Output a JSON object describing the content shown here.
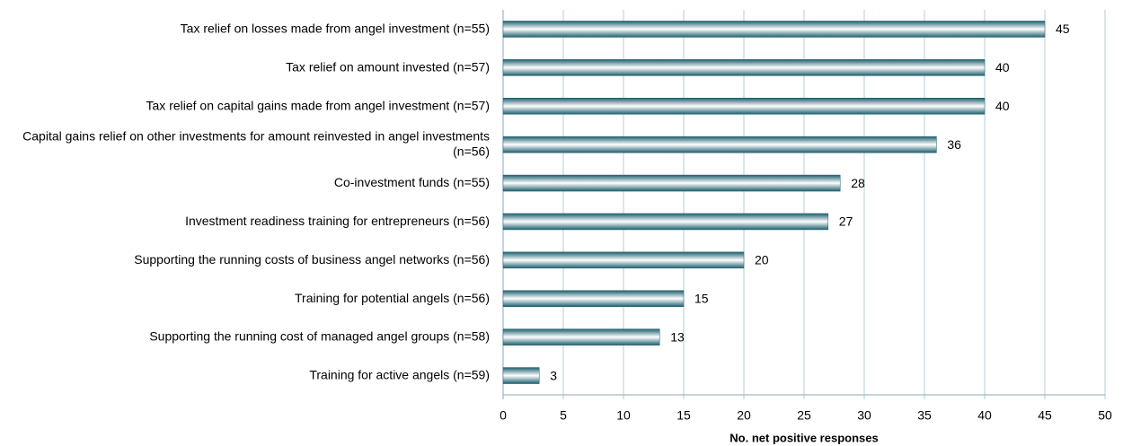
{
  "chart_data": {
    "type": "bar",
    "orientation": "horizontal",
    "x_label": "No. net positive responses",
    "categories": [
      "Tax relief on losses made from angel investment (n=55)",
      "Tax relief on amount invested (n=57)",
      "Tax relief on capital gains made from angel investment (n=57)",
      "Capital gains relief on other investments for amount reinvested in angel investments (n=56)",
      "Co-investment funds (n=55)",
      "Investment readiness training for entrepreneurs (n=56)",
      "Supporting the running costs of business angel networks (n=56)",
      "Training for potential angels (n=56)",
      "Supporting the running cost of managed angel groups (n=58)",
      "Training for active angels (n=59)"
    ],
    "values": [
      45,
      40,
      40,
      36,
      28,
      27,
      20,
      15,
      13,
      3
    ],
    "color": "#1d5f6f",
    "xlim": [
      0,
      50
    ],
    "xticks": [
      0,
      5,
      10,
      15,
      20,
      25,
      30,
      35,
      40,
      45,
      50
    ],
    "grid": true
  }
}
